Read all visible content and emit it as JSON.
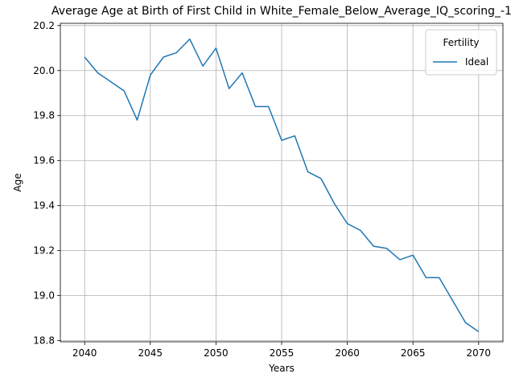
{
  "chart_data": {
    "type": "line",
    "title": "Average Age at Birth of First Child in White_Female_Below_Average_IQ_scoring_-1",
    "xlabel": "Years",
    "ylabel": "Age",
    "xlim": [
      2038.15,
      2071.85
    ],
    "ylim": [
      18.795,
      20.21
    ],
    "x_ticks": [
      2040,
      2045,
      2050,
      2055,
      2060,
      2065,
      2070
    ],
    "y_ticks": [
      18.8,
      19.0,
      19.2,
      19.4,
      19.6,
      19.8,
      20.0,
      20.2
    ],
    "x_tick_labels": [
      "2040",
      "2045",
      "2050",
      "2055",
      "2060",
      "2065",
      "2070"
    ],
    "y_tick_labels": [
      "18.8",
      "19.0",
      "19.2",
      "19.4",
      "19.6",
      "19.8",
      "20.0",
      "20.2"
    ],
    "grid": true,
    "legend": {
      "title": "Fertility",
      "placement": "top-right"
    },
    "x": [
      2040,
      2041,
      2042,
      2043,
      2044,
      2045,
      2046,
      2047,
      2048,
      2049,
      2050,
      2051,
      2052,
      2053,
      2054,
      2055,
      2056,
      2057,
      2058,
      2059,
      2060,
      2061,
      2062,
      2063,
      2064,
      2065,
      2066,
      2067,
      2068,
      2069,
      2070
    ],
    "series": [
      {
        "name": "Ideal",
        "color": "#1f77b4",
        "values": [
          20.06,
          19.99,
          19.95,
          19.91,
          19.78,
          19.98,
          20.06,
          20.08,
          20.14,
          20.02,
          20.1,
          19.92,
          19.99,
          19.84,
          19.84,
          19.69,
          19.71,
          19.55,
          19.52,
          19.41,
          19.32,
          19.29,
          19.22,
          19.21,
          19.16,
          19.18,
          19.08,
          19.08,
          18.98,
          18.88,
          18.84
        ]
      }
    ]
  }
}
